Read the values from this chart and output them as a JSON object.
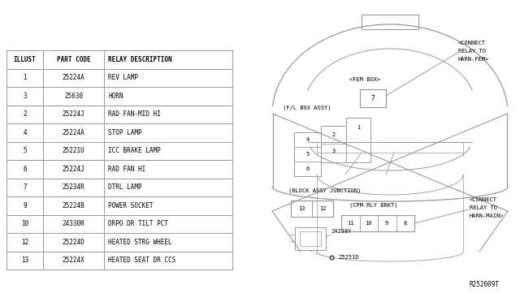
{
  "bg_color": "#ffffff",
  "line_color": "#999999",
  "text_color": "#000000",
  "table_data": [
    [
      "ILLUST",
      "PART CODE",
      "RELAY DESCRIPTION"
    ],
    [
      "1",
      "25224A",
      "REV LAMP"
    ],
    [
      "3",
      "25630",
      "HORN"
    ],
    [
      "2",
      "25224J",
      "RAD FAN-MID HI"
    ],
    [
      "4",
      "25224A",
      "STOP LAMP"
    ],
    [
      "5",
      "25221U",
      "ICC BRAKE LAMP"
    ],
    [
      "6",
      "25224J",
      "RAD FAN HI"
    ],
    [
      "7",
      "25234R",
      "DTRL LAMP"
    ],
    [
      "9",
      "25224B",
      "POWER SOCKET"
    ],
    [
      "10",
      "24330R",
      "DRPO DR TILT PCT"
    ],
    [
      "12",
      "25224D",
      "HEATED STRG WHEEL"
    ],
    [
      "13",
      "25224X",
      "HEATED SEAT DR CCS"
    ]
  ],
  "ref_code": "R252009T",
  "font_size": 5.5,
  "label_size": 5.0
}
